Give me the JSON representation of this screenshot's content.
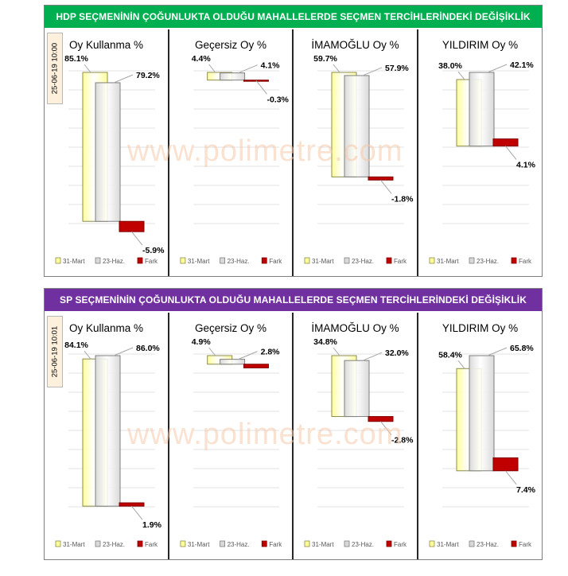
{
  "legend": {
    "s1": "31-Mart",
    "s2": "23-Haz.",
    "s3": "Fark"
  },
  "colors": {
    "s1": "#ffff99",
    "s2": "#d9d9d9",
    "s3": "#c00000",
    "hdp_header": "#00b050",
    "sp_header": "#7030a0"
  },
  "watermark": "www.polimetre.com",
  "panels": [
    {
      "header": "HDP SEÇMENİNİN ÇOĞUNLUKTA OLDUĞU MAHALLELERDE SEÇMEN TERCİHLERİNDEKİ DEĞİŞİKLİK",
      "timestamp": "25-06-19 10:00"
    },
    {
      "header": "SP SEÇMENİNİN ÇOĞUNLUKTA OLDUĞU MAHALLELERDE SEÇMEN TERCİHLERİNDEKİ DEĞİŞİKLİK",
      "timestamp": "25-06-19 10:01"
    }
  ],
  "chart_data": [
    {
      "type": "bar",
      "title": "Oy Kullanma %",
      "group": "HDP",
      "categories": [
        "31-Mart",
        "23-Haz.",
        "Fark"
      ],
      "values": [
        85.1,
        79.2,
        -5.9
      ],
      "labels": [
        "85.1%",
        "79.2%",
        "-5.9%"
      ]
    },
    {
      "type": "bar",
      "title": "Geçersiz Oy %",
      "group": "HDP",
      "categories": [
        "31-Mart",
        "23-Haz.",
        "Fark"
      ],
      "values": [
        4.4,
        4.1,
        -0.3
      ],
      "labels": [
        "4.4%",
        "4.1%",
        "-0.3%"
      ]
    },
    {
      "type": "bar",
      "title": "İMAMOĞLU Oy %",
      "group": "HDP",
      "categories": [
        "31-Mart",
        "23-Haz.",
        "Fark"
      ],
      "values": [
        59.7,
        57.9,
        -1.8
      ],
      "labels": [
        "59.7%",
        "57.9%",
        "-1.8%"
      ]
    },
    {
      "type": "bar",
      "title": "YILDIRIM Oy %",
      "group": "HDP",
      "categories": [
        "31-Mart",
        "23-Haz.",
        "Fark"
      ],
      "values": [
        38.0,
        42.1,
        4.1
      ],
      "labels": [
        "38.0%",
        "42.1%",
        "4.1%"
      ]
    },
    {
      "type": "bar",
      "title": "Oy Kullanma %",
      "group": "SP",
      "categories": [
        "31-Mart",
        "23-Haz.",
        "Fark"
      ],
      "values": [
        84.1,
        86.0,
        1.9
      ],
      "labels": [
        "84.1%",
        "86.0%",
        "1.9%"
      ]
    },
    {
      "type": "bar",
      "title": "Geçersiz Oy %",
      "group": "SP",
      "categories": [
        "31-Mart",
        "23-Haz.",
        "Fark"
      ],
      "values": [
        4.9,
        2.8,
        -2.1
      ],
      "labels": [
        "4.9%",
        "2.8%",
        ""
      ]
    },
    {
      "type": "bar",
      "title": "İMAMOĞLU Oy %",
      "group": "SP",
      "categories": [
        "31-Mart",
        "23-Haz.",
        "Fark"
      ],
      "values": [
        34.8,
        32.0,
        -2.8
      ],
      "labels": [
        "34.8%",
        "32.0%",
        "-2.8%"
      ]
    },
    {
      "type": "bar",
      "title": "YILDIRIM Oy %",
      "group": "SP",
      "categories": [
        "31-Mart",
        "23-Haz.",
        "Fark"
      ],
      "values": [
        58.4,
        65.8,
        7.4
      ],
      "labels": [
        "58.4%",
        "65.8%",
        "7.4%"
      ]
    }
  ]
}
